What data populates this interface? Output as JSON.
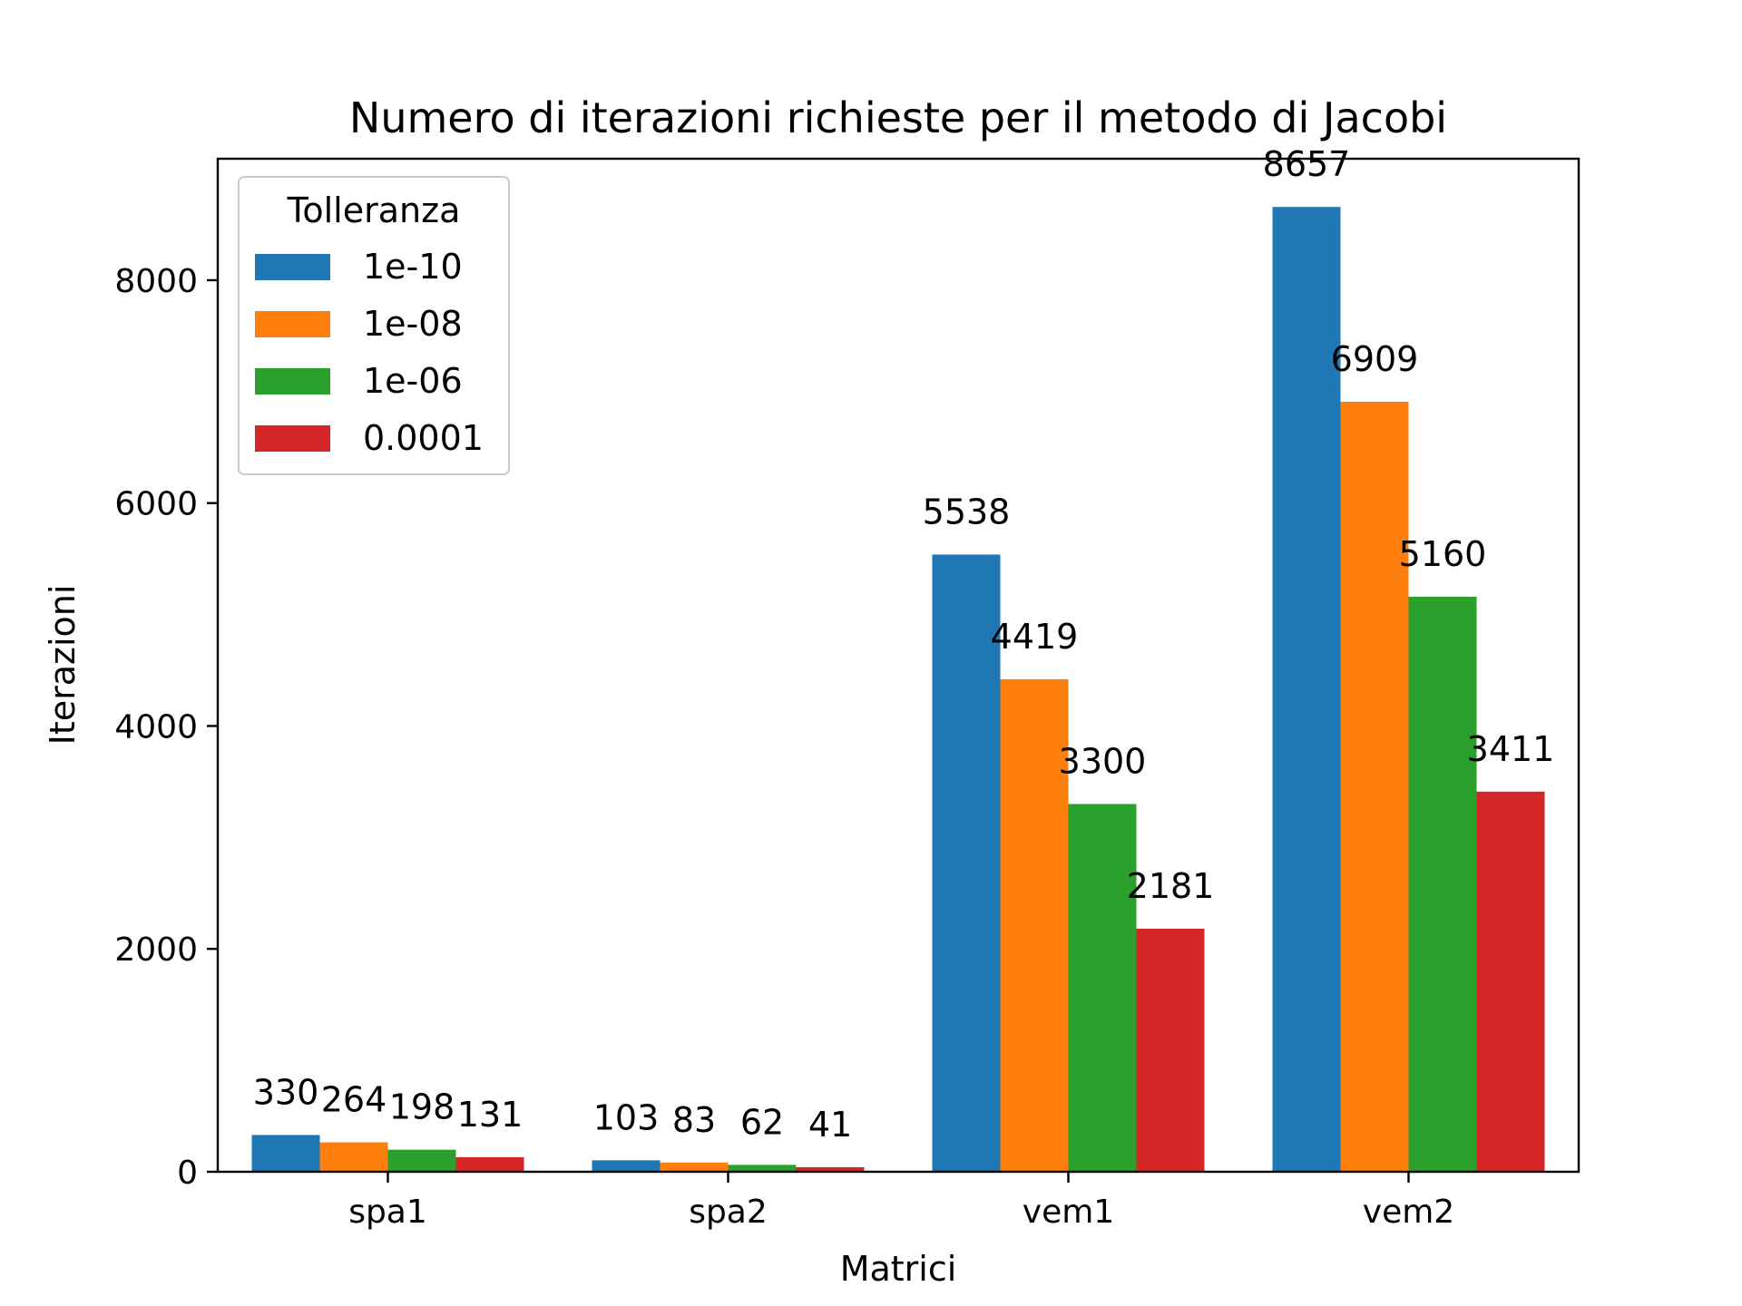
{
  "chart_data": {
    "type": "bar",
    "title": "Numero di iterazioni richieste per il metodo di Jacobi",
    "xlabel": "Matrici",
    "ylabel": "Iterazioni",
    "categories": [
      "spa1",
      "spa2",
      "vem1",
      "vem2"
    ],
    "series": [
      {
        "name": "1e-10",
        "color": "#1f77b4",
        "values": [
          330,
          103,
          5538,
          8657
        ]
      },
      {
        "name": "1e-08",
        "color": "#ff7f0e",
        "values": [
          264,
          83,
          4419,
          6909
        ]
      },
      {
        "name": "1e-06",
        "color": "#2ca02c",
        "values": [
          198,
          62,
          3300,
          5160
        ]
      },
      {
        "name": "0.0001",
        "color": "#d62728",
        "values": [
          131,
          41,
          2181,
          3411
        ]
      }
    ],
    "ylim": [
      0,
      9090
    ],
    "yticks": [
      0,
      2000,
      4000,
      6000,
      8000
    ],
    "legend": {
      "title": "Tolleranza",
      "position": "top-left"
    },
    "grid": false
  }
}
